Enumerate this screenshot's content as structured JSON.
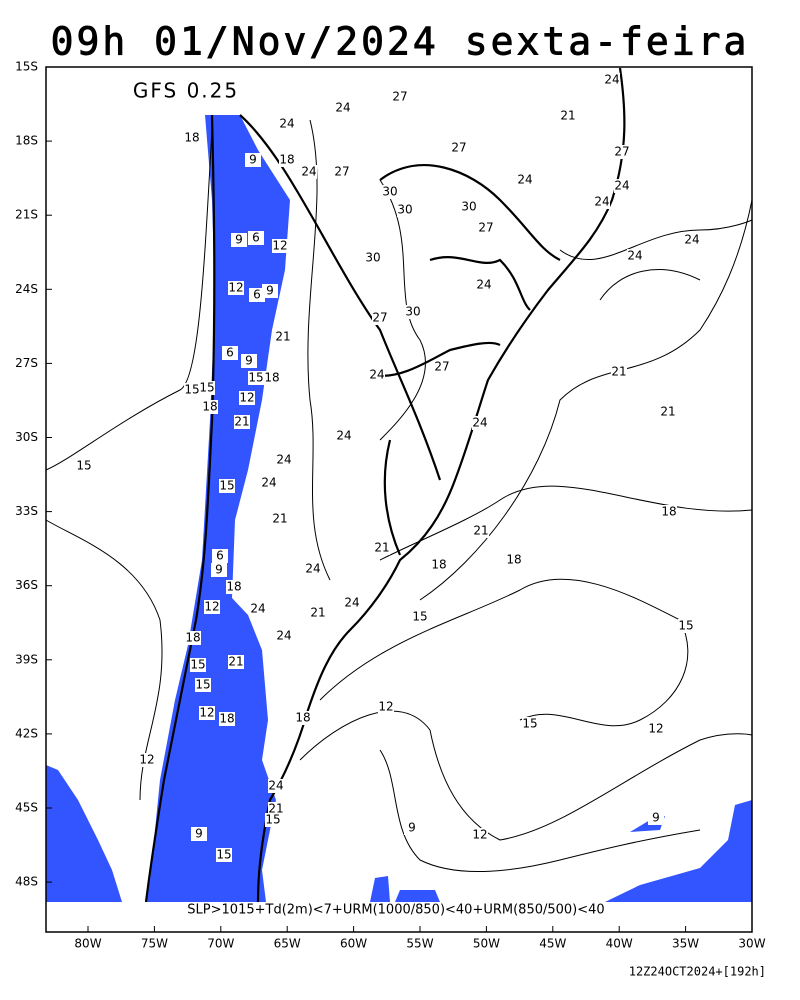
{
  "title": "09h 01/Nov/2024 sexta-feira",
  "model": "GFS 0.25",
  "lat_labels": [
    "15S",
    "18S",
    "21S",
    "24S",
    "27S",
    "30S",
    "33S",
    "36S",
    "39S",
    "42S",
    "45S",
    "48S"
  ],
  "lon_labels": [
    "80W",
    "75W",
    "70W",
    "65W",
    "60W",
    "55W",
    "50W",
    "45W",
    "40W",
    "35W",
    "30W"
  ],
  "legend": "SLP>1015+Td(2m)<7+URM(1000/850)<40+URM(850/500)<40",
  "run": "12Z24OCT2024+[192h]",
  "contour_labels": [
    24,
    27,
    24,
    21,
    18,
    24,
    9,
    18,
    27,
    27,
    24,
    27,
    24,
    24,
    30,
    30,
    30,
    24,
    9,
    6,
    12,
    27,
    24,
    24,
    30,
    12,
    6,
    9,
    24,
    27,
    30,
    21,
    6,
    9,
    15,
    18,
    24,
    27,
    21,
    15,
    15,
    12,
    18,
    21,
    21,
    24,
    24,
    15,
    24,
    24,
    15,
    21,
    18,
    21,
    21,
    6,
    9,
    18,
    18,
    24,
    18,
    12,
    24,
    24,
    21,
    15,
    15,
    24,
    18,
    15,
    21,
    15,
    12,
    12,
    18,
    18,
    15,
    12,
    12,
    24,
    21,
    15,
    9,
    12,
    9,
    9,
    15
  ]
}
